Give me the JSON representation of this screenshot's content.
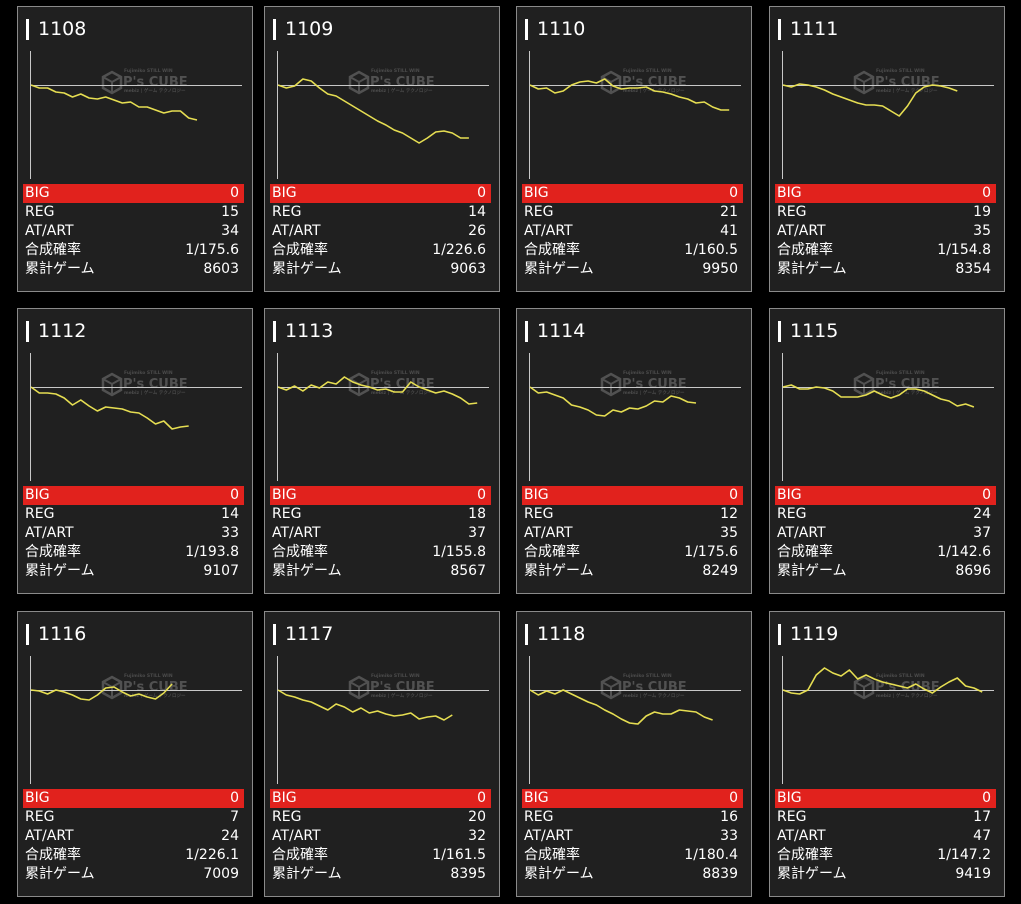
{
  "colors": {
    "background": "#000000",
    "card": "#202020",
    "card_border": "#8a8a8a",
    "big_row": "#e1221d",
    "graph_line": "#e6de52",
    "axis": "#c8c8c8"
  },
  "watermark": {
    "top_text": "Fujimiko STILL WIN",
    "brand": "P's CUBE",
    "sub_text": "mebiz | ゲーム テクノロジー"
  },
  "labels": {
    "big": "BIG",
    "reg": "REG",
    "at_art": "AT/ART",
    "rate": "合成確率",
    "games": "累計ゲーム"
  },
  "machines": [
    {
      "id": "1108",
      "big": "0",
      "reg": "15",
      "at_art": "34",
      "rate": "1/175.6",
      "games": "8603",
      "graph": [
        0,
        -3,
        -3,
        -7,
        -8,
        -12,
        -9,
        -13,
        -14,
        -12,
        -15,
        -18,
        -17,
        -22,
        -22,
        -25,
        -28,
        -26,
        -26,
        -33,
        -35
      ]
    },
    {
      "id": "1109",
      "big": "0",
      "reg": "14",
      "at_art": "26",
      "rate": "1/226.6",
      "games": "9063",
      "graph": [
        0,
        -3,
        -1,
        6,
        4,
        -3,
        -9,
        -11,
        -16,
        -21,
        -26,
        -31,
        -36,
        -40,
        -45,
        -48,
        -53,
        -58,
        -53,
        -47,
        -46,
        -48,
        -53,
        -53
      ]
    },
    {
      "id": "1110",
      "big": "0",
      "reg": "21",
      "at_art": "41",
      "rate": "1/160.5",
      "games": "9950",
      "graph": [
        0,
        -4,
        -3,
        -8,
        -6,
        0,
        3,
        4,
        2,
        6,
        -1,
        -4,
        -3,
        -3,
        -2,
        -6,
        -7,
        -9,
        -12,
        -14,
        -18,
        -17,
        -22,
        -25,
        -25
      ]
    },
    {
      "id": "1111",
      "big": "0",
      "reg": "19",
      "at_art": "35",
      "rate": "1/154.8",
      "games": "8354",
      "graph": [
        0,
        -2,
        1,
        0,
        -2,
        -5,
        -9,
        -12,
        -15,
        -18,
        -20,
        -20,
        -21,
        -26,
        -31,
        -21,
        -8,
        -2,
        0,
        -1,
        -3,
        -6
      ]
    },
    {
      "id": "1112",
      "big": "0",
      "reg": "14",
      "at_art": "33",
      "rate": "1/193.8",
      "games": "9107",
      "graph": [
        0,
        -6,
        -6,
        -7,
        -11,
        -18,
        -13,
        -19,
        -24,
        -20,
        -21,
        -22,
        -25,
        -26,
        -31,
        -37,
        -34,
        -42,
        -40,
        -39
      ]
    },
    {
      "id": "1113",
      "big": "0",
      "reg": "18",
      "at_art": "37",
      "rate": "1/155.8",
      "games": "8567",
      "graph": [
        0,
        -3,
        1,
        -4,
        2,
        -1,
        5,
        3,
        10,
        5,
        2,
        0,
        -3,
        -2,
        -5,
        -5,
        5,
        0,
        -3,
        -6,
        -4,
        -7,
        -11,
        -17,
        -16
      ]
    },
    {
      "id": "1114",
      "big": "0",
      "reg": "12",
      "at_art": "35",
      "rate": "1/175.6",
      "games": "8249",
      "graph": [
        0,
        -6,
        -5,
        -8,
        -11,
        -18,
        -20,
        -23,
        -28,
        -29,
        -23,
        -25,
        -21,
        -22,
        -19,
        -14,
        -15,
        -9,
        -11,
        -15,
        -16
      ]
    },
    {
      "id": "1115",
      "big": "0",
      "reg": "24",
      "at_art": "37",
      "rate": "1/142.6",
      "games": "8696",
      "graph": [
        0,
        2,
        -2,
        -2,
        0,
        -1,
        -4,
        -10,
        -10,
        -10,
        -8,
        -4,
        -8,
        -11,
        -8,
        -2,
        -2,
        -4,
        -8,
        -12,
        -14,
        -19,
        -17,
        -20
      ]
    },
    {
      "id": "1116",
      "big": "0",
      "reg": "7",
      "at_art": "24",
      "rate": "1/226.1",
      "games": "7009",
      "graph": [
        0,
        -1,
        -4,
        0,
        -2,
        -5,
        -9,
        -10,
        -5,
        2,
        3,
        -2,
        -6,
        -4,
        -7,
        -9,
        -3,
        6
      ]
    },
    {
      "id": "1117",
      "big": "0",
      "reg": "20",
      "at_art": "32",
      "rate": "1/161.5",
      "games": "8395",
      "graph": [
        0,
        -5,
        -7,
        -10,
        -12,
        -16,
        -20,
        -14,
        -17,
        -22,
        -18,
        -23,
        -21,
        -24,
        -26,
        -25,
        -23,
        -29,
        -27,
        -26,
        -30,
        -25
      ]
    },
    {
      "id": "1118",
      "big": "0",
      "reg": "16",
      "at_art": "33",
      "rate": "1/180.4",
      "games": "8839",
      "graph": [
        0,
        -5,
        -1,
        -4,
        0,
        -4,
        -8,
        -12,
        -15,
        -20,
        -24,
        -29,
        -33,
        -34,
        -26,
        -22,
        -24,
        -24,
        -20,
        -21,
        -22,
        -27,
        -30
      ]
    },
    {
      "id": "1119",
      "big": "0",
      "reg": "17",
      "at_art": "47",
      "rate": "1/147.2",
      "games": "9419",
      "graph": [
        0,
        -3,
        -4,
        0,
        15,
        22,
        17,
        14,
        20,
        11,
        15,
        11,
        8,
        6,
        4,
        2,
        6,
        1,
        -3,
        3,
        8,
        12,
        4,
        2,
        -2
      ]
    }
  ]
}
